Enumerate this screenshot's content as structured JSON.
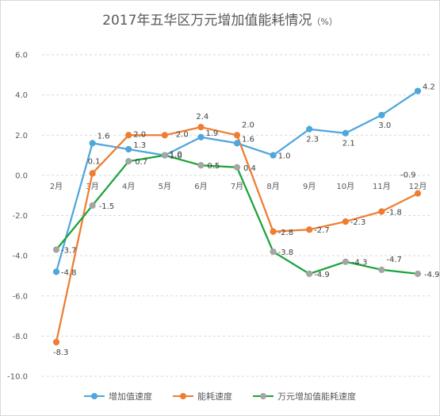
{
  "chart_data": {
    "type": "line",
    "title": "2017年五华区万元增加值能耗情况",
    "title_unit": "（%）",
    "categories": [
      "2月",
      "3月",
      "4月",
      "5月",
      "6月",
      "7月",
      "8月",
      "9月",
      "10月",
      "11月",
      "12月"
    ],
    "ylim": [
      -10.0,
      6.0
    ],
    "yticks": [
      "6.0",
      "4.0",
      "2.0",
      "0.0",
      "-2.0",
      "-4.0",
      "-6.0",
      "-8.0",
      "-10.0"
    ],
    "grid": true,
    "legend_position": "bottom",
    "series": [
      {
        "name": "增加值速度",
        "color": "#4ea6dc",
        "values": [
          -4.8,
          1.6,
          1.3,
          1.0,
          1.9,
          1.6,
          1.0,
          2.3,
          2.1,
          3.0,
          4.2
        ],
        "labels": [
          "-4.8",
          "1.6",
          "1.3",
          "1.0",
          "1.9",
          "1.6",
          "1.0",
          "2.3",
          "2.1",
          "3.0",
          "4.2"
        ]
      },
      {
        "name": "能耗速度",
        "color": "#ee7d31",
        "values": [
          -8.3,
          0.1,
          2.0,
          2.0,
          2.4,
          2.0,
          -2.8,
          -2.7,
          -2.3,
          -1.8,
          -0.9
        ],
        "labels": [
          "-8.3",
          "0.1",
          "2.0",
          "2.0",
          "2.4",
          "2.0",
          "-2.8",
          "-2.7",
          "-2.3",
          "-1.8",
          "-0.9"
        ]
      },
      {
        "name": "万元增加值能耗速度",
        "color": "#1aa339",
        "marker_color": "#a5a5a5",
        "values": [
          -3.7,
          -1.5,
          0.7,
          1.0,
          0.5,
          0.4,
          -3.8,
          -4.9,
          -4.3,
          -4.7,
          -4.9
        ],
        "labels": [
          "-3.7",
          "-1.5",
          "0.7",
          "1.0",
          "0.5",
          "0.4",
          "-3.8",
          "-4.9",
          "-4.3",
          "-4.7",
          "-4.9"
        ]
      }
    ]
  }
}
